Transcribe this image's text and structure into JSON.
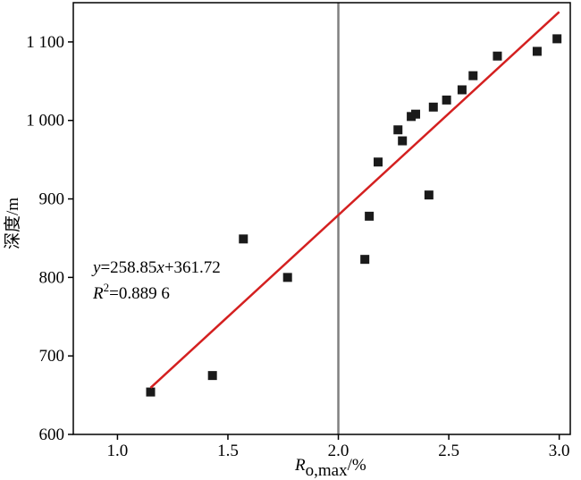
{
  "chart_data": {
    "type": "scatter",
    "title": "",
    "xlabel": "R",
    "xlabel_sub": "o,max",
    "xlabel_unit": "/%",
    "ylabel": "深度/m",
    "xlim": [
      0.8,
      3.05
    ],
    "ylim": [
      600,
      1150
    ],
    "x_ticks": [
      1.0,
      1.5,
      2.0,
      2.5,
      3.0
    ],
    "x_tick_labels": [
      "1.0",
      "1.5",
      "2.0",
      "2.5",
      "3.0"
    ],
    "y_ticks": [
      600,
      700,
      800,
      900,
      1000,
      1100
    ],
    "y_tick_labels": [
      "600",
      "700",
      "800",
      "900",
      "1 000",
      "1 100"
    ],
    "vertical_reference_line": {
      "x": 2.0,
      "color": "#808080"
    },
    "series": [
      {
        "marker": "square",
        "color": "#1a1a1a",
        "points": [
          [
            1.15,
            654
          ],
          [
            1.43,
            675
          ],
          [
            1.57,
            849
          ],
          [
            1.77,
            800
          ],
          [
            2.12,
            823
          ],
          [
            2.14,
            878
          ],
          [
            2.18,
            947
          ],
          [
            2.27,
            988
          ],
          [
            2.29,
            974
          ],
          [
            2.33,
            1005
          ],
          [
            2.35,
            1008
          ],
          [
            2.41,
            905
          ],
          [
            2.43,
            1017
          ],
          [
            2.49,
            1026
          ],
          [
            2.56,
            1039
          ],
          [
            2.61,
            1057
          ],
          [
            2.72,
            1082
          ],
          [
            2.9,
            1088
          ],
          [
            2.99,
            1104
          ]
        ]
      }
    ],
    "fit_line": {
      "slope": 258.85,
      "intercept": 361.72,
      "x_range": [
        1.15,
        3.0
      ],
      "color": "#d42020"
    },
    "annotation": {
      "equation": "y=258.85x+361.72",
      "r2": "R²=0.889 6"
    }
  }
}
